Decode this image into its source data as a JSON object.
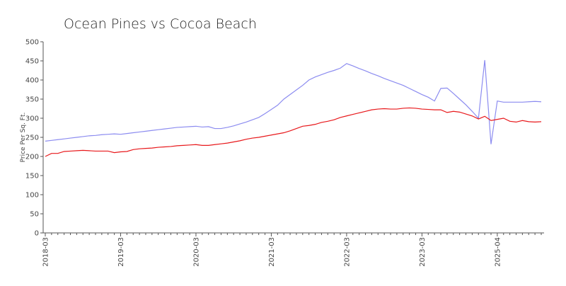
{
  "chart_data": {
    "type": "line",
    "title": "Ocean Pines vs Cocoa Beach",
    "y_label": "Price Per Sq. Ft.",
    "categories": [
      "2018-03",
      null,
      null,
      null,
      null,
      null,
      null,
      null,
      null,
      null,
      null,
      null,
      "2019-03",
      null,
      null,
      null,
      null,
      null,
      null,
      null,
      null,
      null,
      null,
      null,
      "2020-03",
      null,
      null,
      null,
      null,
      null,
      null,
      null,
      null,
      null,
      null,
      null,
      "2021-03",
      null,
      null,
      null,
      null,
      null,
      null,
      null,
      null,
      null,
      null,
      null,
      "2022-03",
      null,
      null,
      null,
      null,
      null,
      null,
      null,
      null,
      null,
      null,
      null,
      "2023-03",
      null,
      null,
      null,
      null,
      null,
      null,
      null,
      null,
      null,
      null,
      null,
      "2025-04",
      null,
      null,
      null,
      null,
      null,
      null,
      null
    ],
    "series": [
      {
        "color": "#8c8cf0",
        "values": [
          240,
          242,
          244,
          246,
          248,
          250,
          252,
          254,
          255,
          257,
          258,
          259,
          258,
          260,
          262,
          264,
          266,
          268,
          270,
          272,
          274,
          276,
          277,
          278,
          279,
          277,
          278,
          273,
          273,
          276,
          280,
          285,
          290,
          296,
          302,
          312,
          323,
          334,
          350,
          362,
          374,
          386,
          400,
          408,
          414,
          420,
          425,
          431,
          443,
          437,
          430,
          424,
          417,
          411,
          404,
          398,
          392,
          386,
          378,
          370,
          362,
          355,
          345,
          378,
          379,
          365,
          350,
          335,
          318,
          300,
          452,
          232,
          345,
          342,
          342,
          342,
          342,
          343,
          344,
          343
        ]
      },
      {
        "color": "#e8191c",
        "values": [
          200,
          208,
          208,
          213,
          214,
          215,
          216,
          215,
          214,
          214,
          214,
          210,
          212,
          213,
          218,
          220,
          221,
          222,
          224,
          225,
          226,
          228,
          229,
          230,
          231,
          229,
          229,
          231,
          233,
          235,
          238,
          241,
          245,
          248,
          250,
          253,
          256,
          259,
          262,
          267,
          273,
          279,
          281,
          284,
          289,
          292,
          296,
          302,
          306,
          310,
          314,
          318,
          322,
          324,
          325,
          324,
          324,
          326,
          327,
          326,
          324,
          323,
          322,
          322,
          315,
          318,
          316,
          311,
          306,
          298,
          305,
          294,
          297,
          300,
          292,
          290,
          294,
          291,
          290,
          291
        ]
      }
    ],
    "ylim": [
      0,
      500
    ],
    "yticks": [
      0,
      50,
      100,
      150,
      200,
      250,
      300,
      350,
      400,
      450,
      500
    ],
    "grid": false
  }
}
